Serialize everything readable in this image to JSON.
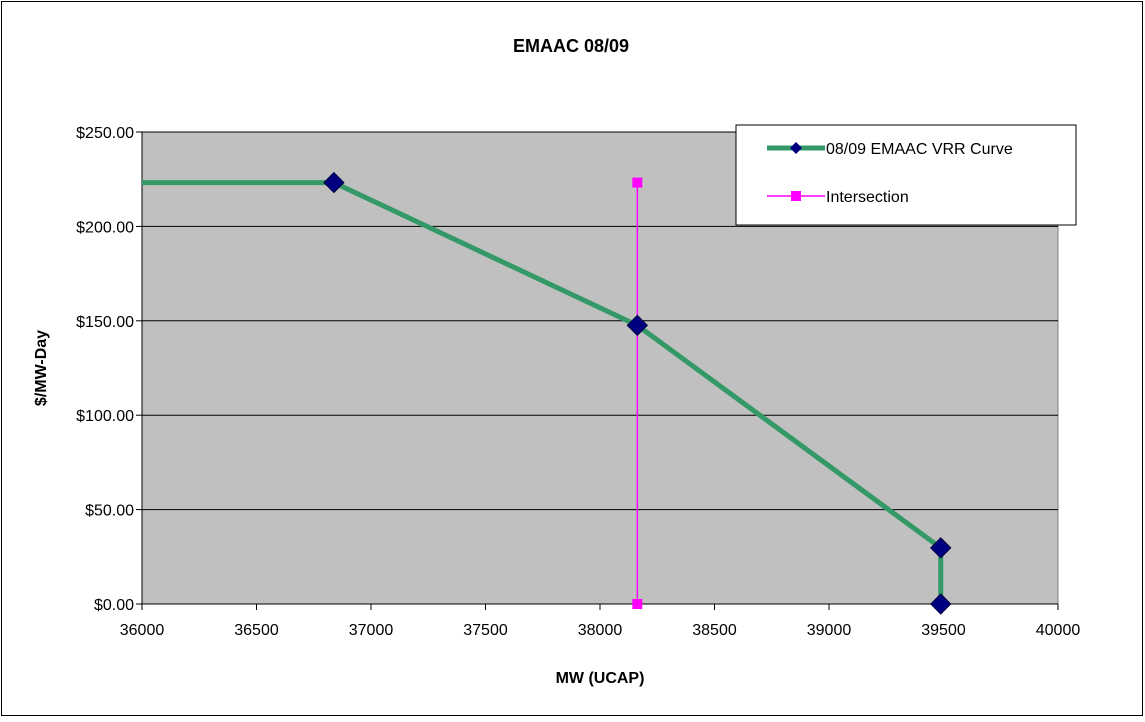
{
  "chart_data": {
    "type": "line",
    "title": "EMAAC 08/09",
    "xlabel": "MW (UCAP)",
    "ylabel": "$/MW-Day",
    "xlim": [
      36000,
      40000
    ],
    "ylim": [
      0,
      250
    ],
    "x_ticks": [
      36000,
      36500,
      37000,
      37500,
      38000,
      38500,
      39000,
      39500,
      40000
    ],
    "y_ticks": [
      0,
      50,
      100,
      150,
      200,
      250
    ],
    "x_tick_labels": [
      "36000",
      "36500",
      "37000",
      "37500",
      "38000",
      "38500",
      "39000",
      "39500",
      "40000"
    ],
    "y_tick_labels": [
      "$0.00",
      "$50.00",
      "$100.00",
      "$150.00",
      "$200.00",
      "$250.00"
    ],
    "grid": "horizontal",
    "plot_background": "#c0c0c0",
    "legend_position": "top-right",
    "series": [
      {
        "name": "08/09 EMAAC VRR Curve",
        "color": "#339966",
        "marker": "diamond",
        "marker_color": "#000080",
        "points": [
          {
            "x": 36838,
            "y": 223.2,
            "marker": true
          },
          {
            "x": 38163,
            "y": 147.6,
            "marker": true
          },
          {
            "x": 39488,
            "y": 29.73,
            "marker": true
          },
          {
            "x": 39488,
            "y": 0.0,
            "marker": true
          }
        ],
        "extends_left_to_axis_edge": true
      },
      {
        "name": "Intersection",
        "color": "#ff00ff",
        "marker": "square",
        "marker_color": "#ff00ff",
        "points": [
          {
            "x": 38163,
            "y": 0.0,
            "marker": true
          },
          {
            "x": 38163,
            "y": 223.2,
            "marker": true
          }
        ]
      }
    ]
  }
}
